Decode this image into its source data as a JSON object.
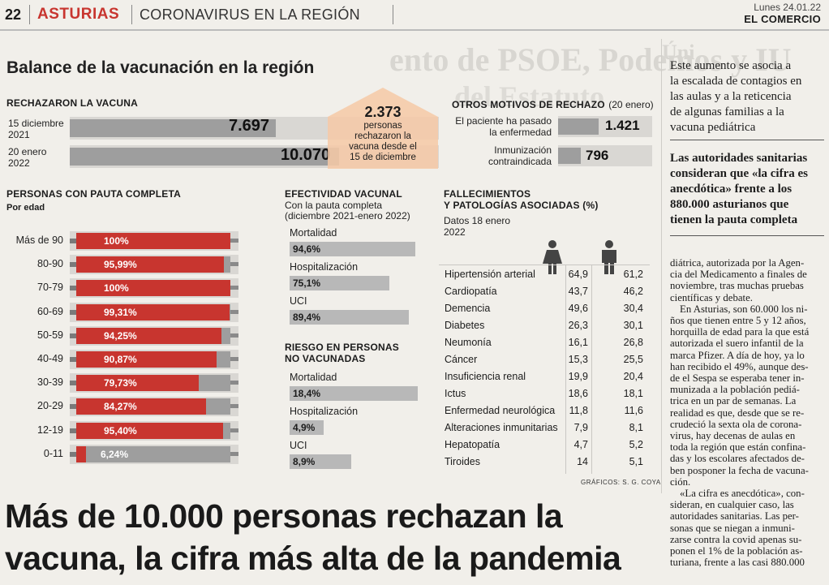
{
  "header": {
    "page_number": "22",
    "section": "ASTURIAS",
    "subsection": "CORONAVIRUS EN LA REGIÓN",
    "date": "Lunes 24.01.22",
    "newspaper": "EL COMERCIO"
  },
  "graphic_title": "Balance de la vacunación en la región",
  "credit": "GRÁFICOS: S. G. COYA",
  "headline_lines": [
    "Más de 10.000 personas rechazan la",
    "vacuna, la cifra más alta de la pandemia"
  ],
  "chart_data": [
    {
      "type": "bar",
      "title": "RECHAZARON LA VACUNA",
      "categories": [
        "15 diciembre 2021",
        "20 enero 2022"
      ],
      "category_lines": [
        [
          "15 diciembre",
          "2021"
        ],
        [
          "20 enero",
          "2022"
        ]
      ],
      "values": [
        7697,
        10070
      ],
      "value_labels": [
        "7.697",
        "10.070"
      ],
      "annotation": {
        "value": "2.373",
        "text_lines": [
          "personas",
          "rechazaron la",
          "vacuna desde el",
          "15 de diciembre"
        ]
      }
    },
    {
      "type": "bar",
      "title": "OTROS MOTIVOS DE RECHAZO",
      "title_note": "(20 enero)",
      "categories": [
        "El paciente ha pasado la enfermedad",
        "Inmunización contraindicada"
      ],
      "category_lines": [
        [
          "El paciente ha pasado",
          "la enfermedad"
        ],
        [
          "Inmunización",
          "contraindicada"
        ]
      ],
      "values": [
        1421,
        796
      ],
      "value_labels": [
        "1.421",
        "796"
      ]
    },
    {
      "type": "bar",
      "title": "PERSONAS CON PAUTA COMPLETA",
      "subtitle": "Por edad",
      "categories": [
        "Más de 90",
        "80-90",
        "70-79",
        "60-69",
        "50-59",
        "40-49",
        "30-39",
        "20-29",
        "12-19",
        "0-11"
      ],
      "values": [
        100,
        95.99,
        100,
        99.31,
        94.25,
        90.87,
        79.73,
        84.27,
        95.4,
        6.24
      ],
      "value_labels": [
        "100%",
        "95,99%",
        "100%",
        "99,31%",
        "94,25%",
        "90,87%",
        "79,73%",
        "84,27%",
        "95,40%",
        "6,24%"
      ],
      "ylim": [
        0,
        100
      ]
    },
    {
      "type": "bar",
      "title_lines": [
        "EFECTIVIDAD VACUNAL"
      ],
      "subtitle_lines": [
        "Con la pauta completa",
        "(diciembre 2021-enero 2022)"
      ],
      "categories": [
        "Mortalidad",
        "Hospitalización",
        "UCI"
      ],
      "values": [
        94.6,
        75.1,
        89.4
      ],
      "value_labels": [
        "94,6%",
        "75,1%",
        "89,4%"
      ],
      "ylim": [
        0,
        100
      ]
    },
    {
      "type": "bar",
      "title_lines": [
        "RIESGO EN PERSONAS",
        "NO VACUNADAS"
      ],
      "categories": [
        "Mortalidad",
        "Hospitalización",
        "UCI"
      ],
      "values": [
        18.4,
        4.9,
        8.9
      ],
      "value_labels": [
        "18,4%",
        "4,9%",
        "8,9%"
      ]
    },
    {
      "type": "table",
      "title_lines": [
        "FALLECIMIENTOS",
        "Y PATOLOGÍAS ASOCIADAS (%)"
      ],
      "subtitle_lines": [
        "Datos 18 enero",
        "2022"
      ],
      "columns": [
        "mujer-icon",
        "hombre-icon"
      ],
      "rows": [
        {
          "label": "Hipertensión arterial",
          "mujeres": "64,9",
          "hombres": "61,2"
        },
        {
          "label": "Cardiopatía",
          "mujeres": "43,7",
          "hombres": "46,2"
        },
        {
          "label": "Demencia",
          "mujeres": "49,6",
          "hombres": "30,4"
        },
        {
          "label": "Diabetes",
          "mujeres": "26,3",
          "hombres": "30,1"
        },
        {
          "label": "Neumonía",
          "mujeres": "16,1",
          "hombres": "26,8"
        },
        {
          "label": "Cáncer",
          "mujeres": "15,3",
          "hombres": "25,5"
        },
        {
          "label": "Insuficiencia renal",
          "mujeres": "19,9",
          "hombres": "20,4"
        },
        {
          "label": "Ictus",
          "mujeres": "18,6",
          "hombres": "18,1"
        },
        {
          "label": "Enfermedad neurológica",
          "mujeres": "11,8",
          "hombres": "11,6"
        },
        {
          "label": "Alteraciones inmunitarias",
          "mujeres": "7,9",
          "hombres": "8,1"
        },
        {
          "label": "Hepatopatía",
          "mujeres": "4,7",
          "hombres": "5,2"
        },
        {
          "label": "Tiroides",
          "mujeres": "14",
          "hombres": "5,1"
        }
      ]
    }
  ],
  "bleed_through": {
    "lines": [
      "ento de PSOE, Podemos y IU",
      "del Estatuto"
    ]
  },
  "sidebar": {
    "pullquote1_lines": [
      "Este aumento se asocia a",
      "la escalada de contagios en",
      "las aulas y a la reticencia",
      "de algunas familias a la",
      "vacuna pediátrica"
    ],
    "pullquote2_lines": [
      "Las autoridades sanitarias",
      "consideran que «la cifra es",
      "anecdótica» frente a los",
      "880.000 asturianos que",
      "tienen la pauta completa"
    ],
    "body_lines": [
      "diátrica, autorizada por la Agen-",
      "cia del Medicamento a finales de",
      "noviembre, tras muchas pruebas",
      "científicas y debate.",
      "En Asturias, son 60.000 los ni-",
      "ños que tienen entre 5 y 12 años,",
      "horquilla de edad para la que está",
      "autorizada el suero infantil de la",
      "marca Pfizer. A día de hoy, ya lo",
      "han recibido el 49%, aunque des-",
      "de el Sespa se esperaba tener in-",
      "munizada a la población pediá-",
      "trica en un par de semanas. La",
      "realidad es que, desde que se re-",
      "crudeció la sexta ola de corona-",
      "virus, hay decenas de aulas en",
      "toda la región que están confina-",
      "das y los escolares afectados de-",
      "ben posponer la fecha de vacuna-",
      "ción.",
      "«La cifra es anecdótica», con-",
      "sideran, en cualquier caso, las",
      "autoridades sanitarias. Las per-",
      "sonas que se niegan a inmuni-",
      "zarse contra la covid apenas su-",
      "ponen el 1% de la población as-",
      "turiana, frente a las casi 880.000"
    ],
    "edge_fragments": [
      "Úni",
      "qu"
    ]
  }
}
